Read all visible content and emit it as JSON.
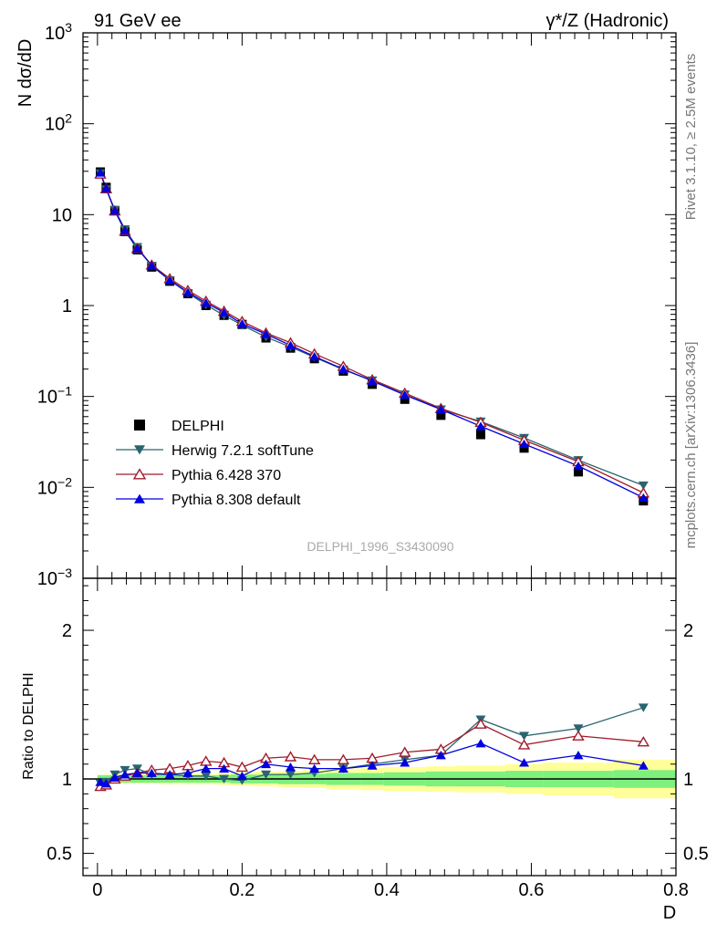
{
  "header": {
    "left": "91 GeV ee",
    "right": "γ*/Z (Hadronic)"
  },
  "side_labels": {
    "rivet": "Rivet 3.1.10, ≥ 2.5M events",
    "mcplots": "mcplots.cern.ch [arXiv:1306.3436]"
  },
  "watermark": "DELPHI_1996_S3430090",
  "chart_data": [
    {
      "type": "line",
      "panel": "main",
      "ylabel": "N dσ/dD",
      "yscale": "log",
      "ylim": [
        0.001,
        1000
      ],
      "xlim": [
        -0.02,
        0.8
      ],
      "yticks": [
        {
          "value": 1000,
          "base": "10",
          "exp": "3"
        },
        {
          "value": 100,
          "base": "10",
          "exp": "2"
        },
        {
          "value": 10,
          "base": "10",
          "exp": ""
        },
        {
          "value": 1,
          "base": "1",
          "exp": ""
        },
        {
          "value": 0.1,
          "base": "10",
          "exp": "−1"
        },
        {
          "value": 0.01,
          "base": "10",
          "exp": "−2"
        },
        {
          "value": 0.001,
          "base": "10",
          "exp": "−3"
        }
      ],
      "x": [
        0.004,
        0.012,
        0.024,
        0.038,
        0.055,
        0.075,
        0.1,
        0.125,
        0.15,
        0.175,
        0.2,
        0.233,
        0.267,
        0.3,
        0.34,
        0.38,
        0.425,
        0.475,
        0.53,
        0.59,
        0.665,
        0.755
      ],
      "legend_position": "middle-left",
      "series": [
        {
          "name": "DELPHI",
          "color": "#000000",
          "marker": "square",
          "values": [
            29.5,
            20.0,
            11.0,
            6.5,
            4.1,
            2.65,
            1.85,
            1.35,
            1.0,
            0.78,
            0.62,
            0.44,
            0.34,
            0.26,
            0.19,
            0.136,
            0.093,
            0.062,
            0.038,
            0.027,
            0.0148,
            0.0071
          ]
        },
        {
          "name": "Herwig 7.2.1 softTune",
          "color": "#2a6470",
          "marker": "triangle-down",
          "values": [
            28.5,
            19.0,
            11.3,
            6.9,
            4.4,
            2.73,
            1.9,
            1.37,
            1.02,
            0.78,
            0.61,
            0.45,
            0.35,
            0.27,
            0.197,
            0.15,
            0.105,
            0.072,
            0.053,
            0.035,
            0.0199,
            0.0105
          ]
        },
        {
          "name": "Pythia 6.428 370",
          "color": "#a01c2c",
          "marker": "triangle-open",
          "values": [
            28.0,
            19.3,
            11.0,
            6.6,
            4.25,
            2.8,
            1.98,
            1.47,
            1.12,
            0.87,
            0.67,
            0.5,
            0.39,
            0.295,
            0.215,
            0.153,
            0.109,
            0.074,
            0.052,
            0.033,
            0.0192,
            0.0087
          ]
        },
        {
          "name": "Pythia 8.308 default",
          "color": "#0000e0",
          "marker": "triangle-up",
          "values": [
            29.0,
            19.5,
            11.1,
            6.7,
            4.25,
            2.75,
            1.9,
            1.4,
            1.07,
            0.84,
            0.63,
            0.485,
            0.365,
            0.275,
            0.2,
            0.148,
            0.104,
            0.072,
            0.047,
            0.03,
            0.0172,
            0.0077
          ]
        }
      ]
    },
    {
      "type": "line",
      "panel": "ratio",
      "ylabel": "Ratio to DELPHI",
      "xlabel": "D",
      "ylim": [
        0.35,
        2.35
      ],
      "xlim": [
        -0.02,
        0.8
      ],
      "yticks": [
        {
          "value": 2,
          "label": "2"
        },
        {
          "value": 1,
          "label": "1"
        },
        {
          "value": 0.5,
          "label": "0.5"
        }
      ],
      "xticks": [
        {
          "value": 0,
          "label": "0"
        },
        {
          "value": 0.2,
          "label": "0.2"
        },
        {
          "value": 0.4,
          "label": "0.4"
        },
        {
          "value": 0.6,
          "label": "0.6"
        },
        {
          "value": 0.8,
          "label": "0.8"
        }
      ],
      "bands": {
        "bins": [
          0,
          0.008,
          0.016,
          0.032,
          0.044,
          0.066,
          0.084,
          0.116,
          0.134,
          0.166,
          0.184,
          0.216,
          0.25,
          0.284,
          0.316,
          0.364,
          0.396,
          0.454,
          0.496,
          0.564,
          0.616,
          0.714,
          0.8
        ],
        "inner": [
          0.025,
          0.025,
          0.025,
          0.025,
          0.025,
          0.025,
          0.025,
          0.025,
          0.025,
          0.025,
          0.03,
          0.03,
          0.035,
          0.035,
          0.04,
          0.04,
          0.045,
          0.05,
          0.05,
          0.055,
          0.055,
          0.06
        ],
        "outer": [
          0.03,
          0.03,
          0.03,
          0.03,
          0.03,
          0.03,
          0.035,
          0.035,
          0.035,
          0.04,
          0.045,
          0.05,
          0.055,
          0.06,
          0.07,
          0.075,
          0.08,
          0.085,
          0.09,
          0.1,
          0.11,
          0.13
        ],
        "inner_color": "#7ef07e",
        "outer_color": "#ffff9a"
      },
      "series": [
        {
          "name": "Herwig 7.2.1 softTune",
          "color": "#2a6470",
          "marker": "triangle-down",
          "values": [
            0.97,
            0.98,
            1.03,
            1.06,
            1.07,
            1.03,
            1.03,
            1.02,
            1.02,
            1.0,
            0.99,
            1.03,
            1.03,
            1.04,
            1.07,
            1.1,
            1.13,
            1.16,
            1.4,
            1.29,
            1.34,
            1.48
          ]
        },
        {
          "name": "Pythia 6.428 370",
          "color": "#a01c2c",
          "marker": "triangle-open",
          "values": [
            0.95,
            0.96,
            1.0,
            1.02,
            1.04,
            1.06,
            1.07,
            1.09,
            1.12,
            1.11,
            1.08,
            1.14,
            1.15,
            1.13,
            1.13,
            1.14,
            1.18,
            1.2,
            1.37,
            1.23,
            1.29,
            1.25
          ]
        },
        {
          "name": "Pythia 8.308 default",
          "color": "#0000e0",
          "marker": "triangle-up",
          "values": [
            0.98,
            0.97,
            1.01,
            1.03,
            1.04,
            1.04,
            1.03,
            1.04,
            1.07,
            1.07,
            1.02,
            1.1,
            1.08,
            1.07,
            1.07,
            1.09,
            1.11,
            1.16,
            1.24,
            1.11,
            1.16,
            1.09
          ]
        }
      ]
    }
  ]
}
